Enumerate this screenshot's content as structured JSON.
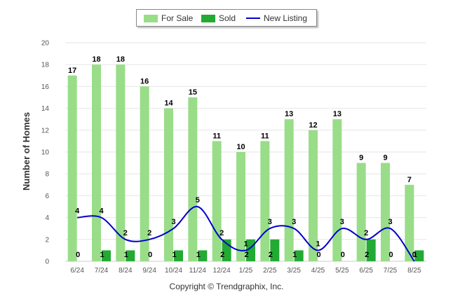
{
  "legend": [
    {
      "label": "For Sale",
      "color": "#99dd88",
      "kind": "bar"
    },
    {
      "label": "Sold",
      "color": "#22aa33",
      "kind": "bar"
    },
    {
      "label": "New Listing",
      "color": "#0000cc",
      "kind": "line"
    }
  ],
  "copyright": "Copyright © Trendgraphix, Inc.",
  "chart_data": {
    "type": "bar",
    "categories": [
      "6/24",
      "7/24",
      "8/24",
      "9/24",
      "10/24",
      "11/24",
      "12/24",
      "1/25",
      "2/25",
      "3/25",
      "4/25",
      "5/25",
      "6/25",
      "7/25",
      "8/25"
    ],
    "series": [
      {
        "name": "For Sale",
        "type": "bar",
        "color": "#99dd88",
        "values": [
          17,
          18,
          18,
          16,
          14,
          15,
          11,
          10,
          11,
          13,
          12,
          13,
          9,
          9,
          7
        ]
      },
      {
        "name": "Sold",
        "type": "bar",
        "color": "#22aa33",
        "values": [
          0,
          1,
          1,
          0,
          1,
          1,
          2,
          2,
          2,
          1,
          0,
          0,
          2,
          0,
          1
        ]
      },
      {
        "name": "New Listing",
        "type": "line",
        "color": "#0000cc",
        "values": [
          4,
          4,
          2,
          2,
          3,
          5,
          2,
          1,
          3,
          3,
          1,
          3,
          2,
          3,
          0
        ]
      }
    ],
    "ylabel": "Number of Homes",
    "xlabel": "",
    "ylim": [
      0,
      20
    ],
    "yticks": [
      0,
      2,
      4,
      6,
      8,
      10,
      12,
      14,
      16,
      18,
      20
    ],
    "grid": true,
    "legend_position": "top-center"
  }
}
